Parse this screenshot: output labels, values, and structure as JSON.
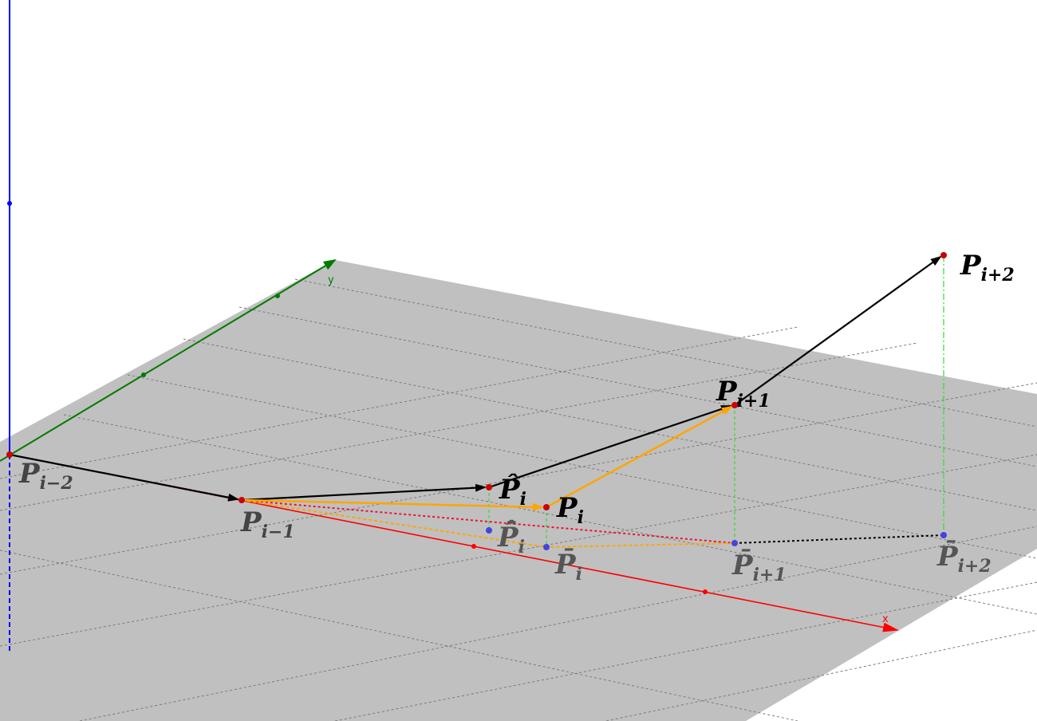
{
  "axes": {
    "x_label": "x",
    "y_label": "y",
    "x_color": "#ff0000",
    "y_color": "#007a00",
    "z_color": "#0000ff"
  },
  "plane_color": "#c0c0c0",
  "colors": {
    "point": "#cc0000",
    "projection": "#4444dd",
    "black_path": "#000000",
    "orange_path": "#ffa500",
    "drop_line": "#33dd33",
    "red_dotted": "#ee1133"
  },
  "labels": {
    "p_im2": {
      "base": "P",
      "sub": "i−2"
    },
    "p_im1": {
      "base": "P",
      "sub": "i−1"
    },
    "p_hat_i": {
      "base": "P̂",
      "sub": "i"
    },
    "p_i": {
      "base": "P",
      "sub": "i"
    },
    "p_ip1": {
      "base": "P",
      "sub": "i+1"
    },
    "p_ip2": {
      "base": "P",
      "sub": "i+2"
    },
    "pbar_hat_i": {
      "base": "P̄̂",
      "sub": "i"
    },
    "pbar_i": {
      "base": "P̄",
      "sub": "i"
    },
    "pbar_ip1": {
      "base": "P̄",
      "sub": "i+1"
    },
    "pbar_ip2": {
      "base": "P̄",
      "sub": "i+2"
    }
  }
}
